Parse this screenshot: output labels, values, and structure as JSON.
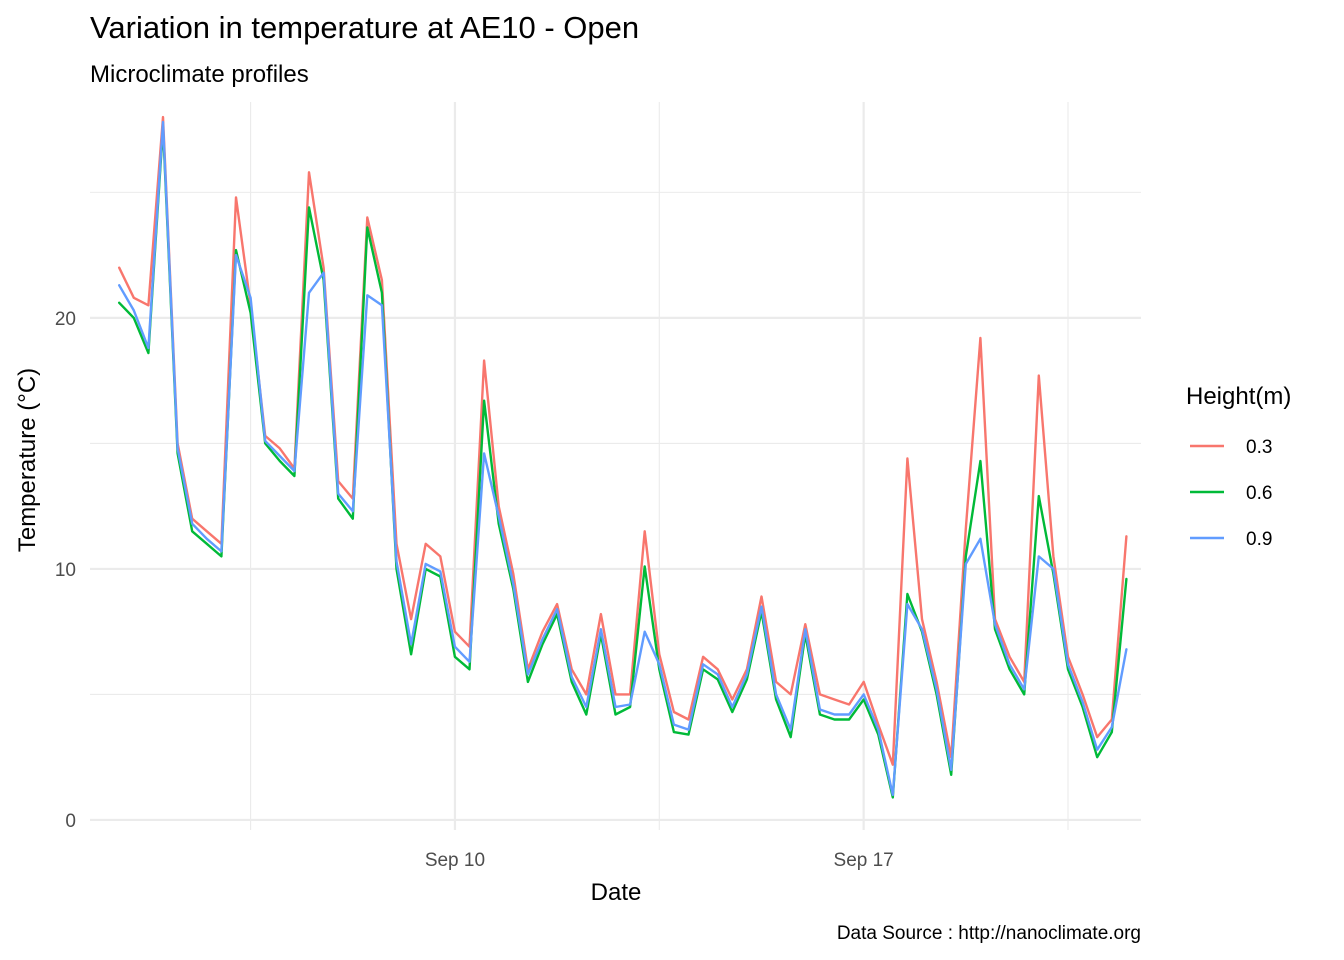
{
  "chart_data": {
    "type": "line",
    "title": "Variation in temperature at AE10 - Open",
    "subtitle": "Microclimate profiles",
    "xlabel": "Date",
    "ylabel": "Temperature (°C)",
    "caption": "Data Source : http://nanoclimate.org",
    "legend_title": "Height(m)",
    "legend_position": "right",
    "grid": true,
    "x_ticks": [
      {
        "date": "2019-09-10",
        "label": "Sep 10"
      },
      {
        "date": "2019-09-17",
        "label": "Sep 17"
      }
    ],
    "y_ticks": [
      {
        "value": 0,
        "label": "0"
      },
      {
        "value": 10,
        "label": "10"
      },
      {
        "value": 20,
        "label": "20"
      }
    ],
    "xlim": [
      "2019-09-03T18:00",
      "2019-09-21T18:00"
    ],
    "ylim": [
      -0.4,
      28.6
    ],
    "x": [
      "2019-09-04T06:00",
      "2019-09-04T12:00",
      "2019-09-04T18:00",
      "2019-09-05T00:00",
      "2019-09-05T06:00",
      "2019-09-05T12:00",
      "2019-09-05T18:00",
      "2019-09-06T00:00",
      "2019-09-06T06:00",
      "2019-09-06T12:00",
      "2019-09-06T18:00",
      "2019-09-07T00:00",
      "2019-09-07T06:00",
      "2019-09-07T12:00",
      "2019-09-07T18:00",
      "2019-09-08T00:00",
      "2019-09-08T06:00",
      "2019-09-08T12:00",
      "2019-09-08T18:00",
      "2019-09-09T00:00",
      "2019-09-09T06:00",
      "2019-09-09T12:00",
      "2019-09-09T18:00",
      "2019-09-10T00:00",
      "2019-09-10T06:00",
      "2019-09-10T12:00",
      "2019-09-10T18:00",
      "2019-09-11T00:00",
      "2019-09-11T06:00",
      "2019-09-11T12:00",
      "2019-09-11T18:00",
      "2019-09-12T00:00",
      "2019-09-12T06:00",
      "2019-09-12T12:00",
      "2019-09-12T18:00",
      "2019-09-13T00:00",
      "2019-09-13T06:00",
      "2019-09-13T12:00",
      "2019-09-13T18:00",
      "2019-09-14T00:00",
      "2019-09-14T06:00",
      "2019-09-14T12:00",
      "2019-09-14T18:00",
      "2019-09-15T00:00",
      "2019-09-15T06:00",
      "2019-09-15T12:00",
      "2019-09-15T18:00",
      "2019-09-16T00:00",
      "2019-09-16T06:00",
      "2019-09-16T12:00",
      "2019-09-16T18:00",
      "2019-09-17T00:00",
      "2019-09-17T06:00",
      "2019-09-17T12:00",
      "2019-09-17T18:00",
      "2019-09-18T00:00",
      "2019-09-18T06:00",
      "2019-09-18T12:00",
      "2019-09-18T18:00",
      "2019-09-19T00:00",
      "2019-09-19T06:00",
      "2019-09-19T12:00",
      "2019-09-19T18:00",
      "2019-09-20T00:00",
      "2019-09-20T06:00",
      "2019-09-20T12:00",
      "2019-09-20T18:00",
      "2019-09-21T00:00",
      "2019-09-21T06:00",
      "2019-09-21T12:00"
    ],
    "series": [
      {
        "name": "0.3",
        "color": "#f8766d",
        "values": [
          22.0,
          20.8,
          20.5,
          28.0,
          15.0,
          12.0,
          11.5,
          11.0,
          24.8,
          20.5,
          15.3,
          14.8,
          14.0,
          25.8,
          22.0,
          13.5,
          12.8,
          24.0,
          21.5,
          11.0,
          8.0,
          11.0,
          10.5,
          7.5,
          6.9,
          18.3,
          12.5,
          9.8,
          6.0,
          7.5,
          8.6,
          6.0,
          5.0,
          8.2,
          5.0,
          5.0,
          11.5,
          6.6,
          4.3,
          4.0,
          6.5,
          6.0,
          4.8,
          6.0,
          8.9,
          5.5,
          5.0,
          7.8,
          5.0,
          4.8,
          4.6,
          5.5,
          3.8,
          2.2,
          14.4,
          8.0,
          5.5,
          2.5,
          11.6,
          19.2,
          8.0,
          6.5,
          5.5,
          17.7,
          10.5,
          6.5,
          5.0,
          3.3,
          4.0,
          11.3
        ]
      },
      {
        "name": "0.6",
        "color": "#00ba38",
        "values": [
          20.6,
          20.0,
          18.6,
          27.6,
          14.6,
          11.5,
          11.0,
          10.5,
          22.7,
          20.2,
          15.0,
          14.3,
          13.7,
          24.4,
          21.5,
          12.8,
          12.0,
          23.6,
          21.0,
          10.0,
          6.6,
          10.0,
          9.7,
          6.5,
          6.0,
          16.7,
          11.8,
          9.2,
          5.5,
          7.0,
          8.2,
          5.5,
          4.2,
          7.4,
          4.2,
          4.5,
          10.1,
          6.0,
          3.5,
          3.4,
          6.0,
          5.6,
          4.3,
          5.6,
          8.3,
          4.8,
          3.3,
          7.4,
          4.2,
          4.0,
          4.0,
          4.8,
          3.4,
          0.9,
          9.0,
          7.5,
          5.0,
          1.8,
          10.5,
          14.3,
          7.6,
          6.0,
          5.0,
          12.9,
          9.8,
          6.0,
          4.5,
          2.5,
          3.5,
          9.6
        ]
      },
      {
        "name": "0.9",
        "color": "#619cff",
        "values": [
          21.3,
          20.3,
          18.8,
          27.8,
          14.8,
          11.8,
          11.2,
          10.7,
          22.5,
          20.8,
          15.1,
          14.5,
          13.9,
          21.0,
          21.8,
          13.0,
          12.3,
          20.9,
          20.5,
          10.3,
          7.0,
          10.2,
          9.9,
          6.9,
          6.3,
          14.6,
          12.1,
          9.4,
          5.8,
          7.2,
          8.4,
          5.7,
          4.5,
          7.6,
          4.5,
          4.6,
          7.5,
          6.2,
          3.8,
          3.6,
          6.2,
          5.8,
          4.5,
          5.8,
          8.5,
          5.0,
          3.6,
          7.6,
          4.4,
          4.2,
          4.2,
          5.0,
          3.6,
          1.0,
          8.6,
          7.6,
          5.2,
          2.0,
          10.2,
          11.2,
          7.8,
          6.2,
          5.2,
          10.5,
          10.0,
          6.2,
          4.7,
          2.8,
          3.7,
          6.8
        ]
      }
    ]
  }
}
